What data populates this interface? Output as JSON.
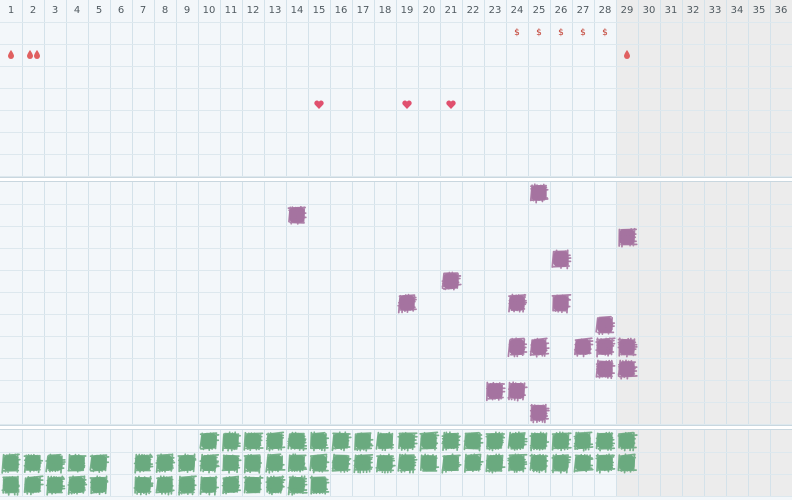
{
  "days": [
    "1",
    "2",
    "3",
    "4",
    "5",
    "6",
    "7",
    "8",
    "9",
    "10",
    "11",
    "12",
    "13",
    "14",
    "15",
    "16",
    "17",
    "18",
    "19",
    "20",
    "21",
    "22",
    "23",
    "24",
    "25",
    "26",
    "27",
    "28",
    "29",
    "30",
    "31",
    "32",
    "33",
    "34",
    "35",
    "36"
  ],
  "current_day": 29,
  "colors": {
    "grid": "#d4e2ea",
    "background": "#f3f7fa",
    "future_shade": "#ececec",
    "dollar": "#c0392b",
    "drop": "#e06060",
    "heart": "#e0506e",
    "purple_mark": "#a573a0",
    "green_mark": "#6aaa7f"
  },
  "top_panel": {
    "dollar_marks": {
      "symbol": "$",
      "days": [
        24,
        25,
        26,
        27,
        28
      ]
    },
    "drop_marks": {
      "icon": "drop-icon",
      "entries": [
        {
          "day": 1,
          "count": 1
        },
        {
          "day": 2,
          "count": 2
        },
        {
          "day": 29,
          "count": 1
        }
      ]
    },
    "heart_marks": {
      "icon": "heart-icon",
      "days": [
        15,
        19,
        21
      ]
    }
  },
  "middle_panel": {
    "icon": "purple-scribble-icon",
    "marks": [
      {
        "day": 25,
        "row": 1
      },
      {
        "day": 14,
        "row": 2
      },
      {
        "day": 29,
        "row": 3
      },
      {
        "day": 26,
        "row": 4
      },
      {
        "day": 21,
        "row": 5
      },
      {
        "day": 19,
        "row": 6
      },
      {
        "day": 24,
        "row": 6
      },
      {
        "day": 26,
        "row": 6
      },
      {
        "day": 28,
        "row": 7
      },
      {
        "day": 24,
        "row": 8
      },
      {
        "day": 25,
        "row": 8
      },
      {
        "day": 27,
        "row": 8
      },
      {
        "day": 28,
        "row": 8
      },
      {
        "day": 29,
        "row": 8
      },
      {
        "day": 28,
        "row": 9
      },
      {
        "day": 29,
        "row": 9
      },
      {
        "day": 23,
        "row": 10
      },
      {
        "day": 24,
        "row": 10
      },
      {
        "day": 25,
        "row": 11
      }
    ]
  },
  "bottom_panel": {
    "icon": "green-scribble-icon",
    "rows": [
      {
        "row": 1,
        "days": [
          10,
          11,
          12,
          13,
          14,
          15,
          16,
          17,
          18,
          19,
          20,
          21,
          22,
          23,
          24,
          25,
          26,
          27,
          28,
          29
        ]
      },
      {
        "row": 2,
        "days": [
          1,
          2,
          3,
          4,
          5,
          7,
          8,
          9,
          10,
          11,
          12,
          13,
          14,
          15,
          16,
          17,
          18,
          19,
          20,
          21,
          22,
          23,
          24,
          25,
          26,
          27,
          28,
          29
        ]
      },
      {
        "row": 3,
        "days": [
          1,
          2,
          3,
          4,
          5,
          7,
          8,
          9,
          10,
          11,
          12,
          13,
          14,
          15
        ]
      }
    ]
  }
}
